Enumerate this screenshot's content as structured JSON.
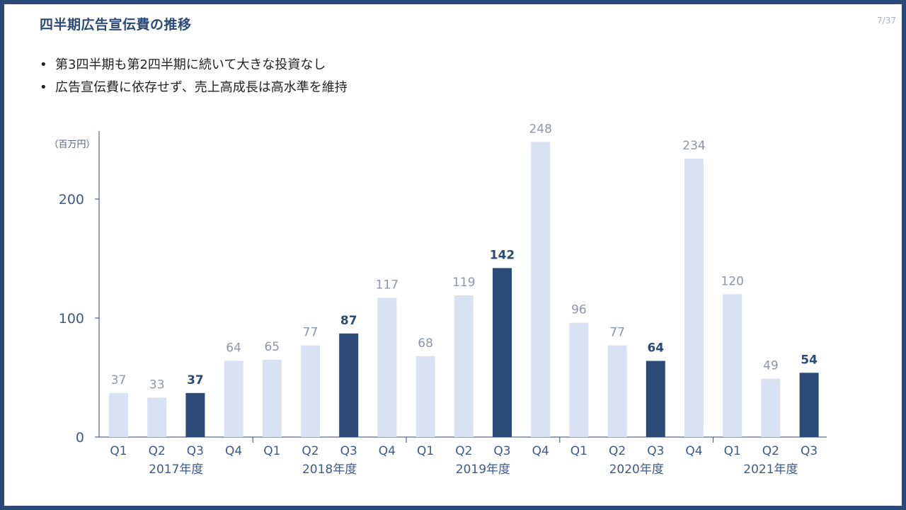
{
  "title": "四半期広告宣伝費の推移",
  "page_number": "7/37",
  "bullets": [
    "第3四半期も第2四半期に続いて大きな投資なし",
    "広告宣伝費に依存せず、売上高成長は高水準を維持"
  ],
  "colors": {
    "accent": "#2b4a78",
    "bar_light": "#d9e2f3",
    "bar_dark": "#2b4a78",
    "label_light": "#8b96a8",
    "label_dark": "#2b4a78"
  },
  "chart_data": {
    "type": "bar",
    "unit_label": "（百万円）",
    "ylim": [
      0,
      260
    ],
    "yticks": [
      0,
      100,
      200
    ],
    "grid": false,
    "categories": [
      "Q1",
      "Q2",
      "Q3",
      "Q4",
      "Q1",
      "Q2",
      "Q3",
      "Q4",
      "Q1",
      "Q2",
      "Q3",
      "Q4",
      "Q1",
      "Q2",
      "Q3",
      "Q4",
      "Q1",
      "Q2",
      "Q3"
    ],
    "values": [
      37,
      33,
      37,
      64,
      65,
      77,
      87,
      117,
      68,
      119,
      142,
      248,
      96,
      77,
      64,
      234,
      120,
      49,
      54
    ],
    "highlight": [
      false,
      false,
      true,
      false,
      false,
      false,
      true,
      false,
      false,
      false,
      true,
      false,
      false,
      false,
      true,
      false,
      false,
      false,
      true
    ],
    "groups": [
      {
        "label": "2017年度",
        "count": 4
      },
      {
        "label": "2018年度",
        "count": 4
      },
      {
        "label": "2019年度",
        "count": 4
      },
      {
        "label": "2020年度",
        "count": 4
      },
      {
        "label": "2021年度",
        "count": 3
      }
    ]
  }
}
